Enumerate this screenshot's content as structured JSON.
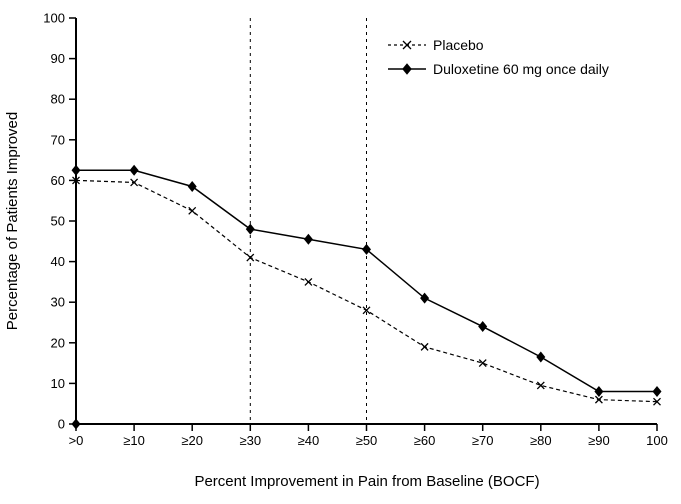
{
  "chart_data": {
    "type": "line",
    "title": "",
    "xlabel": "Percent Improvement in Pain from Baseline (BOCF)",
    "ylabel": "Percentage of Patients Improved",
    "categories": [
      ">0",
      "≥10",
      "≥20",
      "≥30",
      "≥40",
      "≥50",
      "≥60",
      "≥70",
      "≥80",
      "≥90",
      "100"
    ],
    "ylim": [
      0,
      100
    ],
    "ytick_interval": 10,
    "grid": false,
    "reference_lines": {
      "vertical_at_categories": [
        "≥30",
        "≥50"
      ],
      "style": "dashed"
    },
    "legend": {
      "position": "top-right-inside",
      "entries": [
        "Placebo",
        "Duloxetine 60 mg once daily"
      ]
    },
    "series": [
      {
        "name": "Placebo",
        "marker": "x",
        "line_style": "dashed",
        "color": "#000000",
        "values": [
          60,
          59.5,
          52.5,
          41,
          35,
          28,
          19,
          15,
          9.5,
          6,
          5.5
        ]
      },
      {
        "name": "Duloxetine 60 mg once daily",
        "marker": "diamond",
        "line_style": "solid",
        "color": "#000000",
        "values": [
          62.5,
          62.5,
          58.5,
          48,
          45.5,
          43,
          31,
          24,
          16.5,
          8,
          8
        ]
      }
    ],
    "extra_points": [
      {
        "series": "Duloxetine 60 mg once daily",
        "category": ">0",
        "value": 0
      }
    ],
    "colors": {
      "axis": "#000000",
      "background": "#ffffff"
    }
  }
}
